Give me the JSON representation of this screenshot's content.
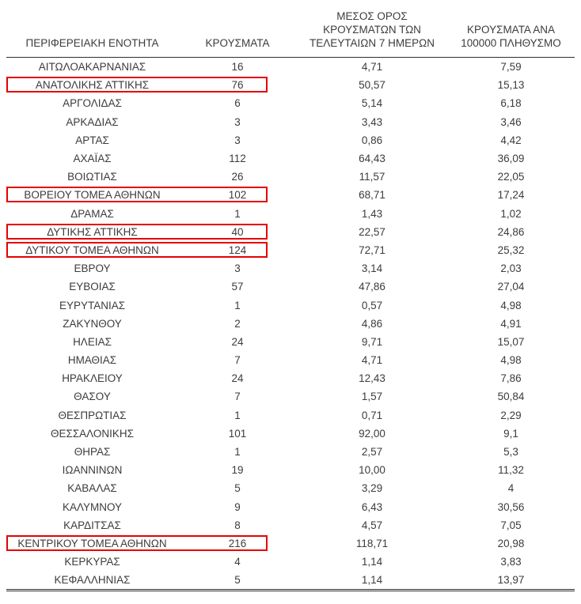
{
  "table": {
    "highlight_color": "#e60000",
    "columns": [
      {
        "lines": [
          "ΠΕΡΙΦΕΡΕΙΑΚΗ ΕΝΟΤΗΤΑ"
        ]
      },
      {
        "lines": [
          "ΚΡΟΥΣΜΑΤΑ"
        ]
      },
      {
        "lines": [
          "ΜΕΣΟΣ ΟΡΟΣ",
          "ΚΡΟΥΣΜΑΤΩΝ ΤΩΝ",
          "ΤΕΛΕΥΤΑΙΩΝ 7 ΗΜΕΡΩΝ"
        ]
      },
      {
        "lines": [
          "ΚΡΟΥΣΜΑΤΑ ΑΝΑ",
          "100000 ΠΛΗΘΥΣΜΟ"
        ]
      }
    ],
    "rows": [
      {
        "region": "ΑΙΤΩΛΟΑΚΑΡΝΑΝΙΑΣ",
        "cases": "16",
        "avg_7d": "4,71",
        "per_100k": "7,59",
        "highlighted": false
      },
      {
        "region": "ΑΝΑΤΟΛΙΚΗΣ ΑΤΤΙΚΗΣ",
        "cases": "76",
        "avg_7d": "50,57",
        "per_100k": "15,13",
        "highlighted": true
      },
      {
        "region": "ΑΡΓΟΛΙΔΑΣ",
        "cases": "6",
        "avg_7d": "5,14",
        "per_100k": "6,18",
        "highlighted": false
      },
      {
        "region": "ΑΡΚΑΔΙΑΣ",
        "cases": "3",
        "avg_7d": "3,43",
        "per_100k": "3,46",
        "highlighted": false
      },
      {
        "region": "ΑΡΤΑΣ",
        "cases": "3",
        "avg_7d": "0,86",
        "per_100k": "4,42",
        "highlighted": false
      },
      {
        "region": "ΑΧΑΪΑΣ",
        "cases": "112",
        "avg_7d": "64,43",
        "per_100k": "36,09",
        "highlighted": false
      },
      {
        "region": "ΒΟΙΩΤΙΑΣ",
        "cases": "26",
        "avg_7d": "11,57",
        "per_100k": "22,05",
        "highlighted": false
      },
      {
        "region": "ΒΟΡΕΙΟΥ ΤΟΜΕΑ ΑΘΗΝΩΝ",
        "cases": "102",
        "avg_7d": "68,71",
        "per_100k": "17,24",
        "highlighted": true
      },
      {
        "region": "ΔΡΑΜΑΣ",
        "cases": "1",
        "avg_7d": "1,43",
        "per_100k": "1,02",
        "highlighted": false
      },
      {
        "region": "ΔΥΤΙΚΗΣ ΑΤΤΙΚΗΣ",
        "cases": "40",
        "avg_7d": "22,57",
        "per_100k": "24,86",
        "highlighted": true
      },
      {
        "region": "ΔΥΤΙΚΟΥ ΤΟΜΕΑ ΑΘΗΝΩΝ",
        "cases": "124",
        "avg_7d": "72,71",
        "per_100k": "25,32",
        "highlighted": true
      },
      {
        "region": "ΕΒΡΟΥ",
        "cases": "3",
        "avg_7d": "3,14",
        "per_100k": "2,03",
        "highlighted": false
      },
      {
        "region": "ΕΥΒΟΙΑΣ",
        "cases": "57",
        "avg_7d": "47,86",
        "per_100k": "27,04",
        "highlighted": false
      },
      {
        "region": "ΕΥΡΥΤΑΝΙΑΣ",
        "cases": "1",
        "avg_7d": "0,57",
        "per_100k": "4,98",
        "highlighted": false
      },
      {
        "region": "ΖΑΚΥΝΘΟΥ",
        "cases": "2",
        "avg_7d": "4,86",
        "per_100k": "4,91",
        "highlighted": false
      },
      {
        "region": "ΗΛΕΙΑΣ",
        "cases": "24",
        "avg_7d": "9,71",
        "per_100k": "15,07",
        "highlighted": false
      },
      {
        "region": "ΗΜΑΘΙΑΣ",
        "cases": "7",
        "avg_7d": "4,71",
        "per_100k": "4,98",
        "highlighted": false
      },
      {
        "region": "ΗΡΑΚΛΕΙΟΥ",
        "cases": "24",
        "avg_7d": "12,43",
        "per_100k": "7,86",
        "highlighted": false
      },
      {
        "region": "ΘΑΣΟΥ",
        "cases": "7",
        "avg_7d": "1,57",
        "per_100k": "50,84",
        "highlighted": false
      },
      {
        "region": "ΘΕΣΠΡΩΤΙΑΣ",
        "cases": "1",
        "avg_7d": "0,71",
        "per_100k": "2,29",
        "highlighted": false
      },
      {
        "region": "ΘΕΣΣΑΛΟΝΙΚΗΣ",
        "cases": "101",
        "avg_7d": "92,00",
        "per_100k": "9,1",
        "highlighted": false
      },
      {
        "region": "ΘΗΡΑΣ",
        "cases": "1",
        "avg_7d": "2,57",
        "per_100k": "5,3",
        "highlighted": false
      },
      {
        "region": "ΙΩΑΝΝΙΝΩΝ",
        "cases": "19",
        "avg_7d": "10,00",
        "per_100k": "11,32",
        "highlighted": false
      },
      {
        "region": "ΚΑΒΑΛΑΣ",
        "cases": "5",
        "avg_7d": "3,29",
        "per_100k": "4",
        "highlighted": false
      },
      {
        "region": "ΚΑΛΥΜΝΟΥ",
        "cases": "9",
        "avg_7d": "6,43",
        "per_100k": "30,56",
        "highlighted": false
      },
      {
        "region": "ΚΑΡΔΙΤΣΑΣ",
        "cases": "8",
        "avg_7d": "4,57",
        "per_100k": "7,05",
        "highlighted": false
      },
      {
        "region": "ΚΕΝΤΡΙΚΟΥ ΤΟΜΕΑ ΑΘΗΝΩΝ",
        "cases": "216",
        "avg_7d": "118,71",
        "per_100k": "20,98",
        "highlighted": true
      },
      {
        "region": "ΚΕΡΚΥΡΑΣ",
        "cases": "4",
        "avg_7d": "1,14",
        "per_100k": "3,83",
        "highlighted": false
      },
      {
        "region": "ΚΕΦΑΛΛΗΝΙΑΣ",
        "cases": "5",
        "avg_7d": "1,14",
        "per_100k": "13,97",
        "highlighted": false
      }
    ]
  }
}
